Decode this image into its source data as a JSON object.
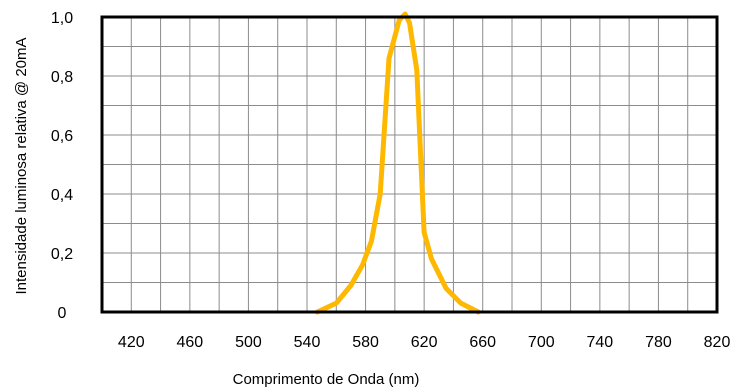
{
  "chart_data": {
    "type": "line",
    "title": "",
    "xlabel": "Comprimento de Onda (nm)",
    "ylabel": "Intensidade luminosa relativa @ 20mA",
    "xlim": [
      400,
      820
    ],
    "ylim": [
      0,
      1.0
    ],
    "grid": true,
    "x_tick_labels": [
      "420",
      "460",
      "500",
      "540",
      "580",
      "620",
      "660",
      "700",
      "740",
      "780",
      "820"
    ],
    "y_tick_labels": [
      "0",
      "0,2",
      "0,4",
      "0,6",
      "0,8",
      "1,0"
    ],
    "line_color": "#FFB800",
    "series": [
      {
        "x": [
          547,
          560,
          570,
          578,
          584,
          590,
          596,
          603,
          607,
          610,
          615,
          620,
          625,
          635,
          645,
          657
        ],
        "y": [
          0.0,
          0.03,
          0.09,
          0.16,
          0.24,
          0.4,
          0.86,
          0.99,
          1.01,
          0.98,
          0.82,
          0.27,
          0.18,
          0.08,
          0.03,
          0.0
        ]
      }
    ]
  }
}
